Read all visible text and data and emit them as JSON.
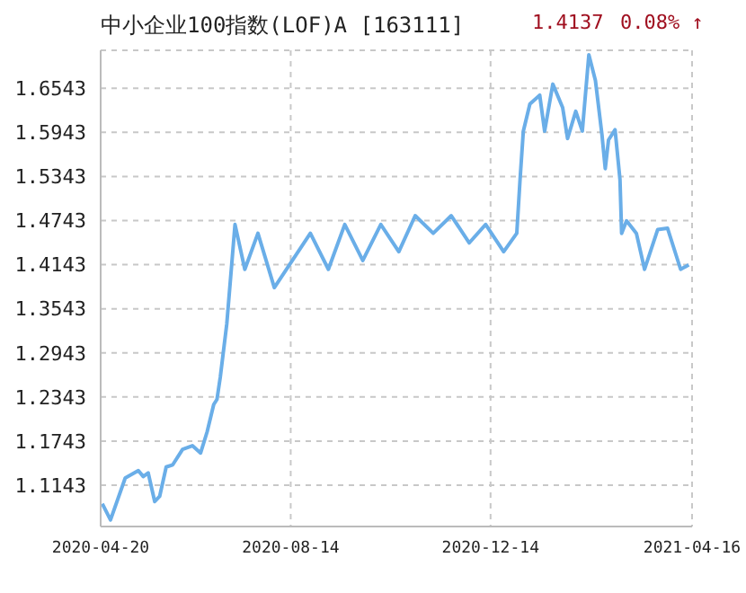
{
  "chart_data": {
    "type": "line",
    "title": "中小企业100指数(LOF)A [163111]",
    "annotations": [
      "1.4137",
      "0.08% ↑"
    ],
    "x": [
      "2020-04-21",
      "2020-04-26",
      "2020-05-05",
      "2020-05-13",
      "2020-05-16",
      "2020-05-19",
      "2020-05-23",
      "2020-05-26",
      "2020-05-30",
      "2020-06-03",
      "2020-06-09",
      "2020-06-15",
      "2020-06-20",
      "2020-06-24",
      "2020-06-28",
      "2020-06-30",
      "2020-07-02",
      "2020-07-06",
      "2020-07-11",
      "2020-07-17",
      "2020-07-25",
      "2020-08-04",
      "2020-08-15",
      "2020-08-26",
      "2020-09-06",
      "2020-09-16",
      "2020-09-27",
      "2020-10-08",
      "2020-10-19",
      "2020-10-29",
      "2020-11-09",
      "2020-11-20",
      "2020-12-01",
      "2020-12-11",
      "2020-12-22",
      "2020-12-30",
      "2021-01-01",
      "2021-01-03",
      "2021-01-07",
      "2021-01-13",
      "2021-01-16",
      "2021-01-21",
      "2021-01-27",
      "2021-01-30",
      "2021-02-04",
      "2021-02-08",
      "2021-02-12",
      "2021-02-16",
      "2021-02-20",
      "2021-02-22",
      "2021-02-24",
      "2021-02-28",
      "2021-03-03",
      "2021-03-04",
      "2021-03-07",
      "2021-03-13",
      "2021-03-18",
      "2021-03-26",
      "2021-04-01",
      "2021-04-09",
      "2021-04-14"
    ],
    "series": [
      {
        "color": "#6aaee8",
        "values": [
          1.089,
          1.067,
          1.124,
          1.134,
          1.126,
          1.131,
          1.092,
          1.099,
          1.139,
          1.142,
          1.163,
          1.168,
          1.158,
          1.187,
          1.224,
          1.231,
          1.261,
          1.334,
          1.469,
          1.408,
          1.457,
          1.383,
          1.42,
          1.457,
          1.408,
          1.469,
          1.42,
          1.469,
          1.432,
          1.481,
          1.457,
          1.481,
          1.444,
          1.469,
          1.432,
          1.457,
          1.53,
          1.596,
          1.633,
          1.645,
          1.596,
          1.66,
          1.628,
          1.586,
          1.623,
          1.596,
          1.7,
          1.665,
          1.591,
          1.545,
          1.584,
          1.598,
          1.53,
          1.457,
          1.474,
          1.457,
          1.408,
          1.462,
          1.464,
          1.408,
          1.414
        ]
      }
    ],
    "xlim": [
      "2020-04-20",
      "2021-04-16"
    ],
    "xticks": [
      "2020-04-20",
      "2020-08-14",
      "2020-12-14",
      "2021-04-16"
    ],
    "ylim": [
      1.058,
      1.706
    ],
    "yticks": [
      1.1143,
      1.1743,
      1.2343,
      1.2943,
      1.3543,
      1.4143,
      1.4743,
      1.5343,
      1.5943,
      1.6543
    ],
    "grid": true
  }
}
